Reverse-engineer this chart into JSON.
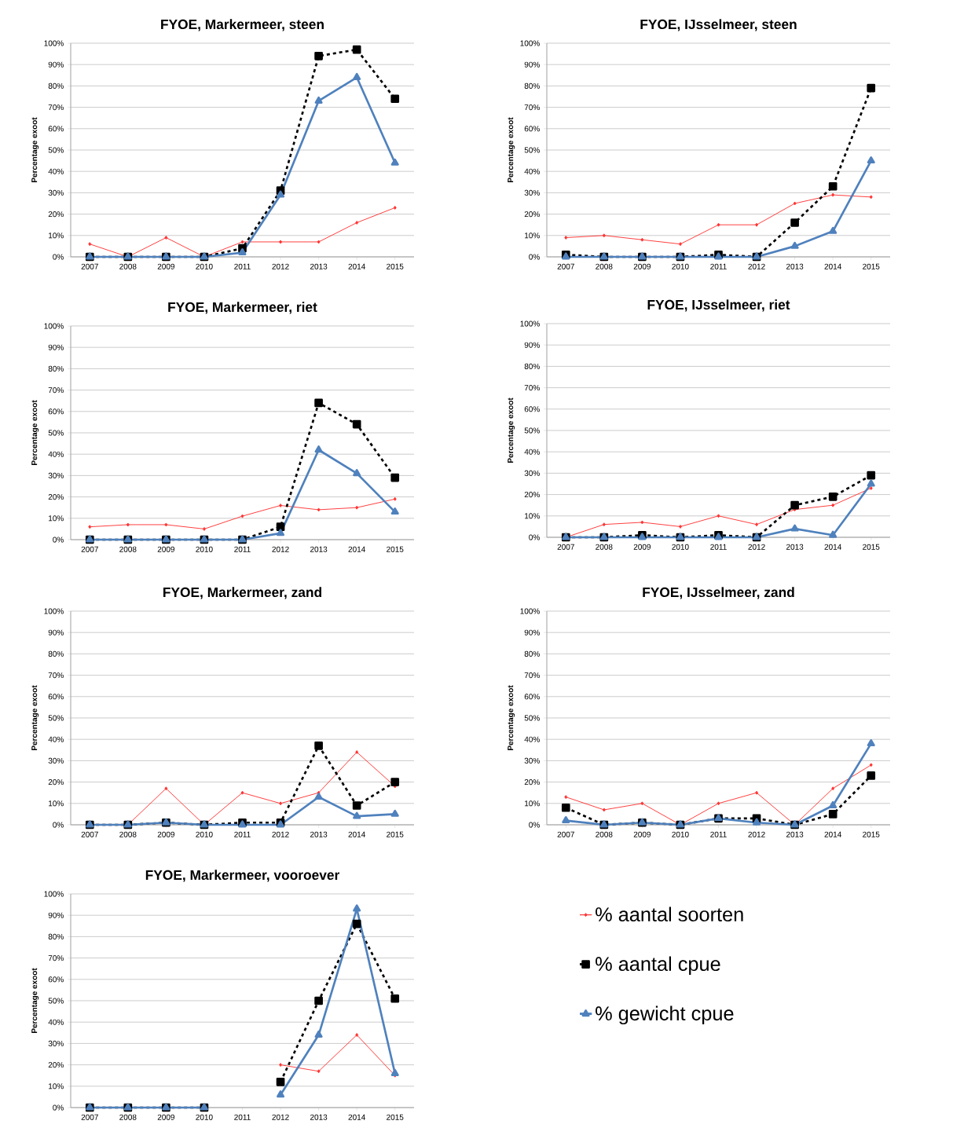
{
  "chart_data": [
    {
      "type": "line",
      "title": "FYOE, Markermeer, steen",
      "ylabel": "Percentage exoot",
      "categories": [
        "2007",
        "2008",
        "2009",
        "2010",
        "2011",
        "2012",
        "2013",
        "2014",
        "2015"
      ],
      "ylim": [
        0,
        100
      ],
      "yticks": [
        {
          "value": 0,
          "label": "0%"
        },
        {
          "value": 10,
          "label": "10%"
        },
        {
          "value": 20,
          "label": "20%"
        },
        {
          "value": 30,
          "label": "30%"
        },
        {
          "value": 40,
          "label": "40%"
        },
        {
          "value": 50,
          "label": "50%"
        },
        {
          "value": 60,
          "label": "60%"
        },
        {
          "value": 70,
          "label": "70%"
        },
        {
          "value": 80,
          "label": "80%"
        },
        {
          "value": 90,
          "label": "90%"
        },
        {
          "value": 100,
          "label": "100%"
        }
      ],
      "grid": "y",
      "series": [
        {
          "color": "#ff3333",
          "marker": "diamond",
          "line_style": "solid",
          "values": [
            6,
            0,
            9,
            0,
            7,
            7,
            7,
            16,
            23
          ]
        },
        {
          "color": "#000000",
          "marker": "square",
          "line_style": "dashed",
          "values": [
            0,
            0,
            0,
            0,
            4,
            31,
            94,
            97,
            74
          ]
        },
        {
          "color": "#4f81bd",
          "marker": "triangle",
          "line_style": "solid",
          "values": [
            0,
            0,
            0,
            0,
            2,
            29,
            73,
            84,
            44
          ]
        }
      ]
    },
    {
      "type": "line",
      "title": "FYOE, IJsselmeer, steen",
      "ylabel": "Percentage exoot",
      "categories": [
        "2007",
        "2008",
        "2009",
        "2010",
        "2011",
        "2012",
        "2013",
        "2014",
        "2015"
      ],
      "ylim": [
        0,
        100
      ],
      "yticks": [
        {
          "value": 0,
          "label": "0%"
        },
        {
          "value": 10,
          "label": "10%"
        },
        {
          "value": 20,
          "label": "20%"
        },
        {
          "value": 30,
          "label": "30%"
        },
        {
          "value": 40,
          "label": "40%"
        },
        {
          "value": 50,
          "label": "50%"
        },
        {
          "value": 60,
          "label": "60%"
        },
        {
          "value": 70,
          "label": "70%"
        },
        {
          "value": 80,
          "label": "80%"
        },
        {
          "value": 90,
          "label": "90%"
        },
        {
          "value": 100,
          "label": "100%"
        }
      ],
      "grid": "y",
      "series": [
        {
          "color": "#ff3333",
          "marker": "diamond",
          "line_style": "solid",
          "values": [
            9,
            10,
            8,
            6,
            15,
            15,
            25,
            29,
            28
          ]
        },
        {
          "color": "#000000",
          "marker": "square",
          "line_style": "dashed",
          "values": [
            1,
            0,
            0,
            0,
            1,
            0,
            16,
            33,
            79
          ]
        },
        {
          "color": "#4f81bd",
          "marker": "triangle",
          "line_style": "solid",
          "values": [
            0,
            0,
            0,
            0,
            0,
            0,
            5,
            12,
            45
          ]
        }
      ]
    },
    {
      "type": "line",
      "title": "FYOE, Markermeer, riet",
      "ylabel": "Percentage exoot",
      "categories": [
        "2007",
        "2008",
        "2009",
        "2010",
        "2011",
        "2012",
        "2013",
        "2014",
        "2015"
      ],
      "ylim": [
        0,
        100
      ],
      "yticks": [
        {
          "value": 0,
          "label": "0%"
        },
        {
          "value": 10,
          "label": "10%"
        },
        {
          "value": 20,
          "label": "20%"
        },
        {
          "value": 30,
          "label": "30%"
        },
        {
          "value": 40,
          "label": "40%"
        },
        {
          "value": 50,
          "label": "50%"
        },
        {
          "value": 60,
          "label": "60%"
        },
        {
          "value": 70,
          "label": "70%"
        },
        {
          "value": 80,
          "label": "80%"
        },
        {
          "value": 90,
          "label": "90%"
        },
        {
          "value": 100,
          "label": "100%"
        }
      ],
      "grid": "y",
      "series": [
        {
          "color": "#ff3333",
          "marker": "diamond",
          "line_style": "solid",
          "values": [
            6,
            7,
            7,
            5,
            11,
            16,
            14,
            15,
            19
          ]
        },
        {
          "color": "#000000",
          "marker": "square",
          "line_style": "dashed",
          "values": [
            0,
            0,
            0,
            0,
            0,
            6,
            64,
            54,
            29
          ]
        },
        {
          "color": "#4f81bd",
          "marker": "triangle",
          "line_style": "solid",
          "values": [
            0,
            0,
            0,
            0,
            0,
            3,
            42,
            31,
            13
          ]
        }
      ]
    },
    {
      "type": "line",
      "title": "FYOE, IJsselmeer, riet",
      "ylabel": "Percentage exoot",
      "categories": [
        "2007",
        "2008",
        "2009",
        "2010",
        "2011",
        "2012",
        "2013",
        "2014",
        "2015"
      ],
      "ylim": [
        0,
        100
      ],
      "yticks": [
        {
          "value": 0,
          "label": "0%"
        },
        {
          "value": 10,
          "label": "10%"
        },
        {
          "value": 20,
          "label": "20%"
        },
        {
          "value": 30,
          "label": "30%"
        },
        {
          "value": 40,
          "label": "40%"
        },
        {
          "value": 50,
          "label": "50%"
        },
        {
          "value": 60,
          "label": "60%"
        },
        {
          "value": 70,
          "label": "70%"
        },
        {
          "value": 80,
          "label": "80%"
        },
        {
          "value": 90,
          "label": "90%"
        },
        {
          "value": 100,
          "label": "100%"
        }
      ],
      "grid": "y",
      "series": [
        {
          "color": "#ff3333",
          "marker": "diamond",
          "line_style": "solid",
          "values": [
            0,
            6,
            7,
            5,
            10,
            6,
            13,
            15,
            23
          ]
        },
        {
          "color": "#000000",
          "marker": "square",
          "line_style": "dashed",
          "values": [
            0,
            0,
            1,
            0,
            1,
            0,
            15,
            19,
            29
          ]
        },
        {
          "color": "#4f81bd",
          "marker": "triangle",
          "line_style": "solid",
          "values": [
            0,
            0,
            0,
            0,
            0,
            0,
            4,
            1,
            25
          ]
        }
      ]
    },
    {
      "type": "line",
      "title": "FYOE, Markermeer, zand",
      "ylabel": "Percentage exoot",
      "categories": [
        "2007",
        "2008",
        "2009",
        "2010",
        "2011",
        "2012",
        "2013",
        "2014",
        "2015"
      ],
      "ylim": [
        0,
        100
      ],
      "yticks": [
        {
          "value": 0,
          "label": "0%"
        },
        {
          "value": 10,
          "label": "10%"
        },
        {
          "value": 20,
          "label": "20%"
        },
        {
          "value": 30,
          "label": "30%"
        },
        {
          "value": 40,
          "label": "40%"
        },
        {
          "value": 50,
          "label": "50%"
        },
        {
          "value": 60,
          "label": "60%"
        },
        {
          "value": 70,
          "label": "70%"
        },
        {
          "value": 80,
          "label": "80%"
        },
        {
          "value": 90,
          "label": "90%"
        },
        {
          "value": 100,
          "label": "100%"
        }
      ],
      "grid": "y",
      "series": [
        {
          "color": "#ff3333",
          "marker": "diamond",
          "line_style": "solid",
          "values": [
            0,
            0,
            17,
            0,
            15,
            10,
            15,
            34,
            18
          ]
        },
        {
          "color": "#000000",
          "marker": "square",
          "line_style": "dashed",
          "values": [
            0,
            0,
            1,
            0,
            1,
            1,
            37,
            9,
            20
          ]
        },
        {
          "color": "#4f81bd",
          "marker": "triangle",
          "line_style": "solid",
          "values": [
            0,
            0,
            1,
            0,
            0,
            0,
            13,
            4,
            5
          ]
        }
      ]
    },
    {
      "type": "line",
      "title": "FYOE, IJsselmeer, zand",
      "ylabel": "Percentage exoot",
      "categories": [
        "2007",
        "2008",
        "2009",
        "2010",
        "2011",
        "2012",
        "2013",
        "2014",
        "2015"
      ],
      "ylim": [
        0,
        100
      ],
      "yticks": [
        {
          "value": 0,
          "label": "0%"
        },
        {
          "value": 10,
          "label": "10%"
        },
        {
          "value": 20,
          "label": "20%"
        },
        {
          "value": 30,
          "label": "30%"
        },
        {
          "value": 40,
          "label": "40%"
        },
        {
          "value": 50,
          "label": "50%"
        },
        {
          "value": 60,
          "label": "60%"
        },
        {
          "value": 70,
          "label": "70%"
        },
        {
          "value": 80,
          "label": "80%"
        },
        {
          "value": 90,
          "label": "90%"
        },
        {
          "value": 100,
          "label": "100%"
        }
      ],
      "grid": "y",
      "series": [
        {
          "color": "#ff3333",
          "marker": "diamond",
          "line_style": "solid",
          "values": [
            13,
            7,
            10,
            0,
            10,
            15,
            0,
            17,
            28
          ]
        },
        {
          "color": "#000000",
          "marker": "square",
          "line_style": "dashed",
          "values": [
            8,
            0,
            1,
            0,
            3,
            3,
            0,
            5,
            23
          ]
        },
        {
          "color": "#4f81bd",
          "marker": "triangle",
          "line_style": "solid",
          "values": [
            2,
            0,
            1,
            0,
            3,
            1,
            0,
            9,
            38
          ]
        }
      ]
    },
    {
      "type": "line",
      "title": "FYOE, Markermeer, vooroever",
      "ylabel": "Percentage exoot",
      "categories": [
        "2007",
        "2008",
        "2009",
        "2010",
        "2011",
        "2012",
        "2013",
        "2014",
        "2015"
      ],
      "ylim": [
        0,
        100
      ],
      "yticks": [
        {
          "value": 0,
          "label": "0%"
        },
        {
          "value": 10,
          "label": "10%"
        },
        {
          "value": 20,
          "label": "20%"
        },
        {
          "value": 30,
          "label": "30%"
        },
        {
          "value": 40,
          "label": "40%"
        },
        {
          "value": 50,
          "label": "50%"
        },
        {
          "value": 60,
          "label": "60%"
        },
        {
          "value": 70,
          "label": "70%"
        },
        {
          "value": 80,
          "label": "80%"
        },
        {
          "value": 90,
          "label": "90%"
        },
        {
          "value": 100,
          "label": "100%"
        }
      ],
      "grid": "y",
      "legend": "right",
      "series": [
        {
          "name": "% aantal soorten",
          "color": "#ff3333",
          "marker": "diamond",
          "line_style": "solid",
          "values": [
            null,
            null,
            null,
            null,
            null,
            20,
            17,
            34,
            15
          ]
        },
        {
          "name": "% aantal cpue",
          "color": "#000000",
          "marker": "square",
          "line_style": "dashed",
          "values": [
            0,
            0,
            0,
            0,
            null,
            12,
            50,
            86,
            51
          ]
        },
        {
          "name": "% gewicht cpue",
          "color": "#4f81bd",
          "marker": "triangle",
          "line_style": "solid",
          "values": [
            0,
            0,
            0,
            0,
            null,
            6,
            34,
            93,
            16
          ]
        }
      ]
    }
  ]
}
